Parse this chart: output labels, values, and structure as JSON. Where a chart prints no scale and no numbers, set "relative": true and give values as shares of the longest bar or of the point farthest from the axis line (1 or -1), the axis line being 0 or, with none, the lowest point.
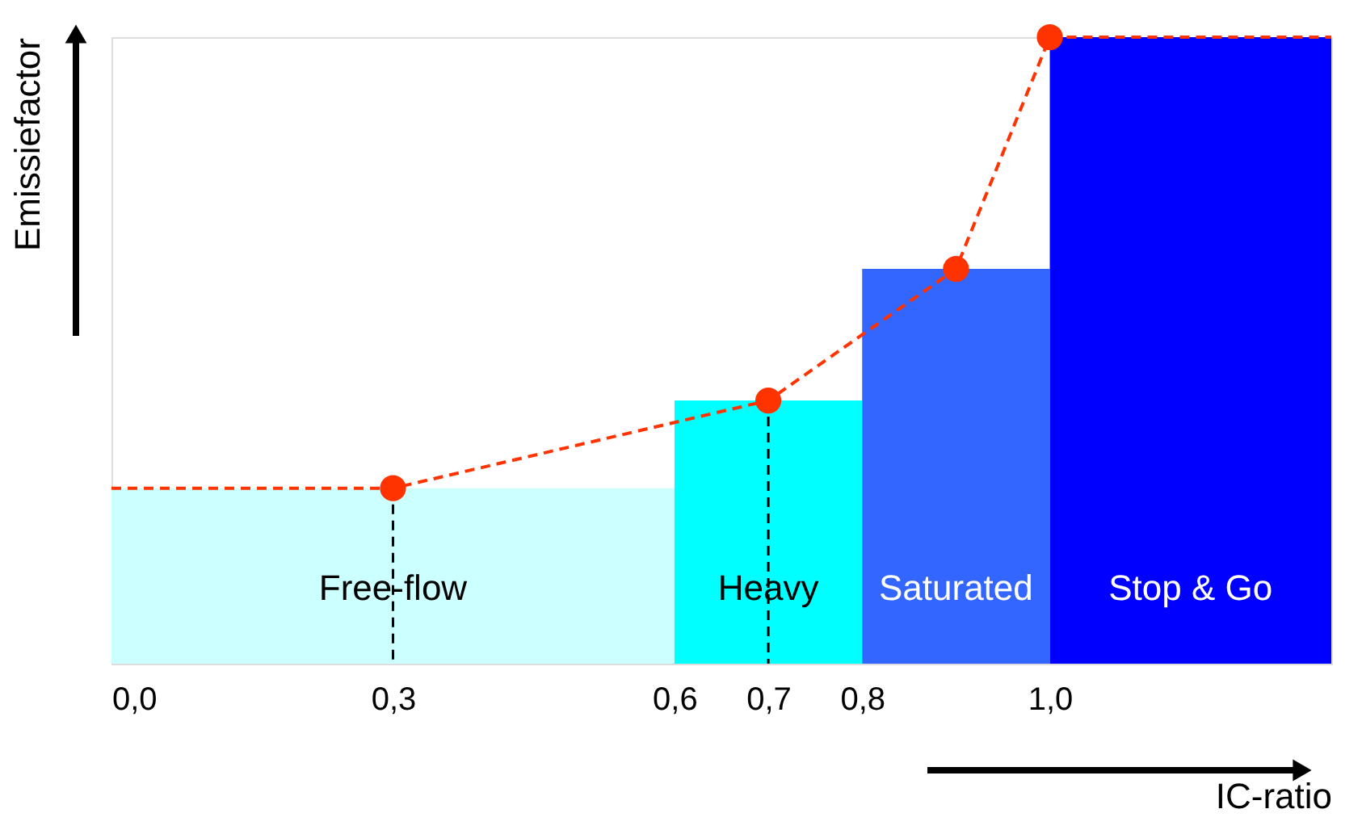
{
  "chart_data": {
    "type": "histogram",
    "relative": true,
    "xlabel": "IC-ratio",
    "ylabel": "Emissiefactor",
    "bins": [
      0,
      0.6,
      0.8,
      1.0,
      1.3
    ],
    "values": [
      0.28,
      0.42,
      0.63,
      1.0
    ],
    "colors": [
      "#ccffff",
      "#00ffff",
      "#3366ff",
      "#0000ff"
    ],
    "xlim": [
      0,
      1.3
    ],
    "xticks": [
      {
        "value": 0,
        "label": "0,0"
      },
      {
        "value": 0.3,
        "label": "0,3"
      },
      {
        "value": 0.6,
        "label": "0,6"
      },
      {
        "value": 0.7,
        "label": "0,7"
      },
      {
        "value": 0.8,
        "label": "0,8"
      },
      {
        "value": 1.0,
        "label": "1,0"
      }
    ],
    "series": [
      {
        "type": "line",
        "color": "#ff3300",
        "line_style": "dashed",
        "marker": "none",
        "x": [
          0,
          0.3,
          0.7,
          0.9,
          1.0,
          1.3
        ],
        "values": [
          0.28,
          0.28,
          0.42,
          0.63,
          1.0,
          1.0
        ]
      },
      {
        "type": "scatter",
        "color": "#ff3300",
        "marker": "circle",
        "x": [
          0.3,
          0.7,
          0.9,
          1.0
        ],
        "values": [
          0.28,
          0.42,
          0.63,
          1.0
        ]
      }
    ],
    "ref_lines": [
      {
        "axis": "x",
        "value": 0.3,
        "color": "#000000",
        "line_style": "dashed"
      },
      {
        "axis": "x",
        "value": 0.7,
        "color": "#000000",
        "line_style": "dashed"
      }
    ],
    "annotations": [
      "Free-flow",
      "Heavy",
      "Saturated",
      "Stop & Go"
    ],
    "grid": false
  }
}
